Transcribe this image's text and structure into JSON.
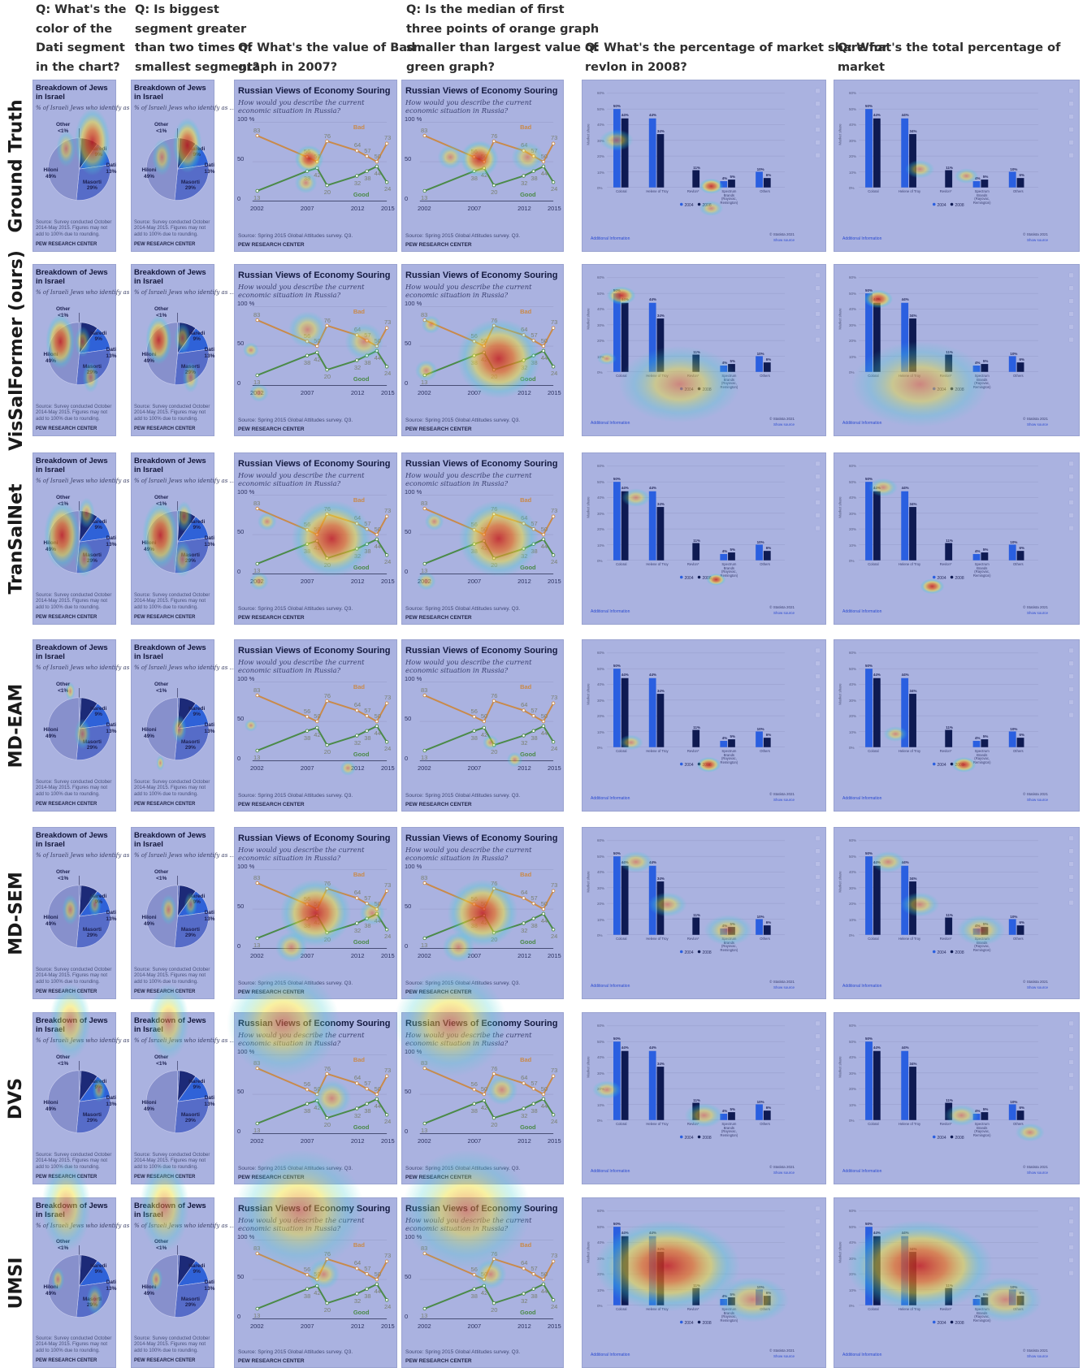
{
  "questions": [
    "Q: What's the\ncolor of the\nDati segment\nin the chart?",
    "Q: Is biggest\nsegment greater\nthan two times of\nsmallest segment?",
    "Q: What's the value of Bad\ngraph in 2007?",
    "Q: Is the median of first\nthree points of orange graph\nsmaller than largest value of\ngreen graph?",
    "Q: What's the percentage of market share for\nrevlon in 2008?",
    "Q: What's the total percentage of market\nshare for revlon for 2004 and 2008?"
  ],
  "rows": [
    "Ground Truth",
    "VisSalFormer (ours)",
    "TranSalNet",
    "MD-EAM",
    "MD-SEM",
    "DVS",
    "UMSI"
  ],
  "pie": {
    "title": "Breakdown of Jews in Israel",
    "subtitle": "% of Israeli Jews who identify as ...",
    "source": "Source: Survey conducted October 2014-May 2015. Figures may not add to 100% due to rounding.",
    "org": "PEW RESEARCH CENTER",
    "chart_data": {
      "type": "pie",
      "categories": [
        "Other",
        "Haredi",
        "Dati",
        "Masorti",
        "Hiloni"
      ],
      "values": [
        1,
        9,
        13,
        29,
        49
      ],
      "value_labels": [
        "<1%",
        "9%",
        "13%",
        "29%",
        "49%"
      ],
      "colors": [
        "#5f6fb8",
        "#1c2a78",
        "#2f62d8",
        "#566cc8",
        "#8790cc"
      ]
    }
  },
  "line": {
    "title": "Russian Views of Economy Souring",
    "question": "How would you describe the current economic situation in Russia?",
    "source": "Source: Spring 2015 Global Attitudes survey. Q3.",
    "org": "PEW RESEARCH CENTER",
    "ytick_top": "100 %",
    "ytick_mid": "50",
    "ytick_bot": "0",
    "bad_label": "Bad",
    "good_label": "Good",
    "chart_data": {
      "type": "line",
      "x": [
        2002,
        2007,
        2008,
        2009,
        2012,
        2013,
        2014,
        2015
      ],
      "xticks": [
        "2002",
        "2007",
        "2012",
        "2015"
      ],
      "ylim": [
        0,
        100
      ],
      "series": [
        {
          "name": "Bad",
          "values": [
            83,
            56,
            50,
            76,
            64,
            57,
            50,
            73
          ],
          "color": "#c98a4a"
        },
        {
          "name": "Good",
          "values": [
            13,
            38,
            42,
            20,
            32,
            38,
            44,
            24
          ],
          "color": "#4b8a48"
        }
      ]
    }
  },
  "bar": {
    "additional_info": "Additional Information",
    "copyright": "© Statista 2021",
    "show_source": "Show source",
    "ylabel": "Market share",
    "chart_data": {
      "type": "bar",
      "categories": [
        "Coloral",
        "Helene of Troy",
        "Revlon*",
        "Spectrum Brands (Rayovac, Remington)",
        "Others"
      ],
      "yticks": [
        "0%",
        "10%",
        "20%",
        "30%",
        "40%",
        "50%",
        "60%"
      ],
      "ylim": [
        0,
        60
      ],
      "series": [
        {
          "name": "2004",
          "values": [
            50,
            44,
            0,
            4,
            10
          ],
          "labels": [
            "50%",
            "44%",
            "",
            "4%",
            "10%"
          ],
          "color": "#2a5fe0"
        },
        {
          "name": "2008",
          "values": [
            44,
            34,
            11,
            5,
            6
          ],
          "labels": [
            "44%",
            "34%",
            "11%",
            "5%",
            "6%"
          ],
          "color": "#0e1a52"
        }
      ],
      "second_labels": [
        "36%",
        "34%"
      ]
    }
  },
  "colors": {
    "overlay": "#aab2e0",
    "heat_hot": "#c62020",
    "heat_warm": "#f0e030",
    "heat_cool": "#40d0d0"
  }
}
